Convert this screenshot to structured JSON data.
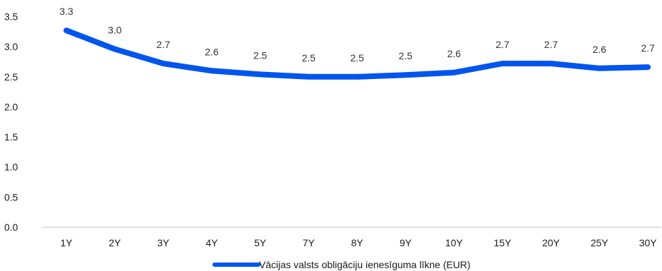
{
  "chart_data": {
    "type": "line",
    "categories": [
      "1Y",
      "2Y",
      "3Y",
      "4Y",
      "5Y",
      "7Y",
      "8Y",
      "9Y",
      "10Y",
      "15Y",
      "20Y",
      "25Y",
      "30Y"
    ],
    "series": [
      {
        "name": "Vācijas valsts obligāciju ienesīguma līkne (EUR)",
        "values": [
          3.27,
          2.96,
          2.72,
          2.6,
          2.54,
          2.5,
          2.5,
          2.53,
          2.57,
          2.72,
          2.72,
          2.64,
          2.66
        ],
        "data_labels": [
          "3.3",
          "3.0",
          "2.7",
          "2.6",
          "2.5",
          "2.5",
          "2.5",
          "2.5",
          "2.6",
          "2.7",
          "2.7",
          "2.6",
          "2.7"
        ],
        "color": "#0055ee"
      }
    ],
    "yticks": [
      "0.0",
      "0.5",
      "1.0",
      "1.5",
      "2.0",
      "2.5",
      "3.0",
      "3.5"
    ],
    "ylim": [
      0,
      3.5
    ],
    "grid": false,
    "legend_position": "bottom-center",
    "title": "",
    "xlabel": "",
    "ylabel": ""
  }
}
